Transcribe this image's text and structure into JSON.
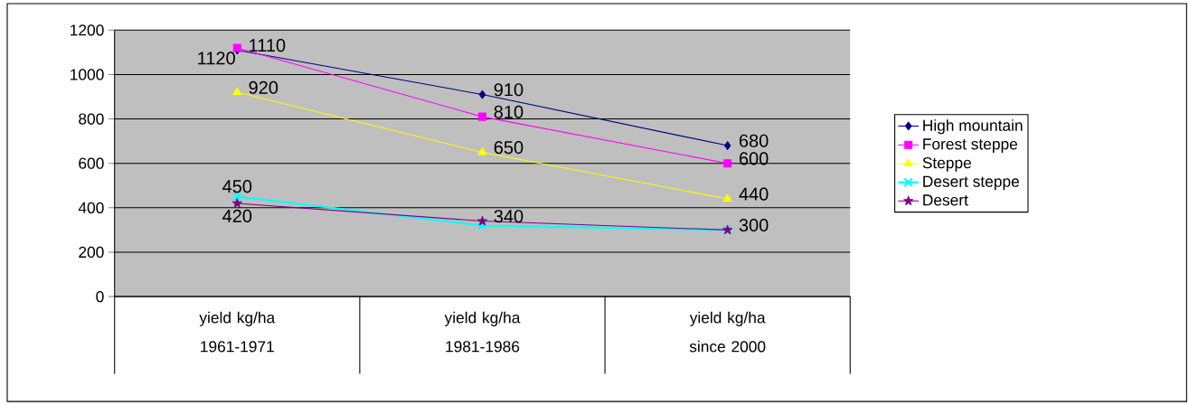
{
  "chart_data": {
    "type": "line",
    "categories": [
      "yield kg/ha 1961-1971",
      "yield kg/ha 1981-1986",
      "yield kg/ha since 2000"
    ],
    "series": [
      {
        "name": "High mountain",
        "color": "#000080",
        "marker": "diamond",
        "values": [
          1110,
          910,
          680
        ],
        "value_labels": [
          "1110",
          "910",
          "680"
        ]
      },
      {
        "name": "Forest steppe",
        "color": "#ff00ff",
        "marker": "square",
        "values": [
          1120,
          810,
          600
        ],
        "value_labels": [
          "1120",
          "810",
          "600"
        ]
      },
      {
        "name": "Steppe",
        "color": "#ffff00",
        "marker": "triangle",
        "values": [
          920,
          650,
          440
        ],
        "value_labels": [
          "920",
          "650",
          "440"
        ]
      },
      {
        "name": "Desert steppe",
        "color": "#00ffff",
        "marker": "cross",
        "values": [
          450,
          320,
          300
        ],
        "value_labels": [
          "450",
          null,
          null
        ]
      },
      {
        "name": "Desert",
        "color": "#800080",
        "marker": "star",
        "values": [
          420,
          340,
          300
        ],
        "value_labels": [
          "420",
          "340",
          "300"
        ]
      }
    ],
    "ylim": [
      0,
      1200
    ],
    "yticks": [
      0,
      200,
      400,
      600,
      800,
      1000,
      1200
    ],
    "grid": "y",
    "legend": "right"
  }
}
